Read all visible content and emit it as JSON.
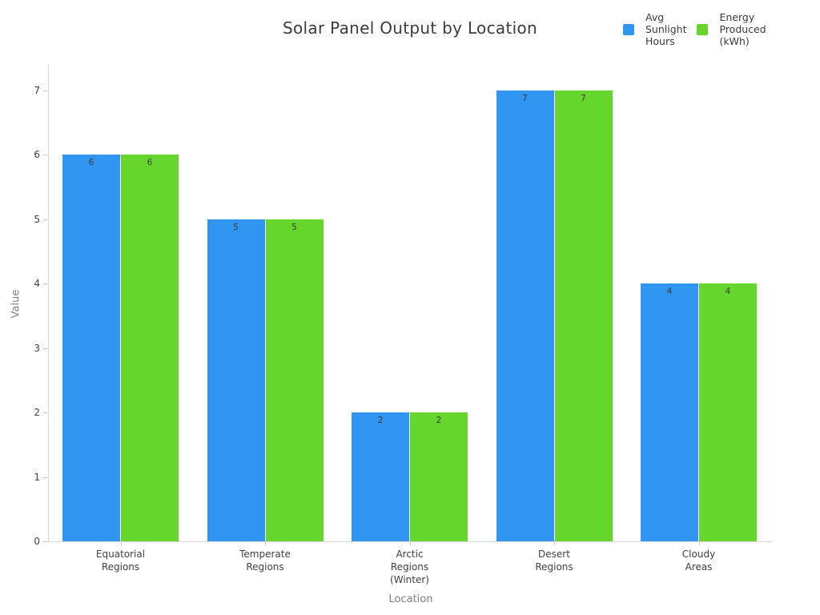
{
  "title": "Solar Panel Output by Location",
  "legend": {
    "items": [
      {
        "label": "Avg\nSunlight\nHours",
        "color": "#3195F2"
      },
      {
        "label": "Energy\nProduced\n(kWh)",
        "color": "#67D62C"
      }
    ]
  },
  "chart_data": {
    "type": "bar",
    "title": "Solar Panel Output by Location",
    "xlabel": "Location",
    "ylabel": "Value",
    "categories": [
      "Equatorial\nRegions",
      "Temperate\nRegions",
      "Arctic\nRegions\n(Winter)",
      "Desert\nRegions",
      "Cloudy\nAreas"
    ],
    "series": [
      {
        "name": "Avg Sunlight Hours",
        "color": "#3195F2",
        "values": [
          6,
          5,
          2,
          7,
          4
        ]
      },
      {
        "name": "Energy Produced (kWh)",
        "color": "#67D62C",
        "values": [
          6,
          5,
          2,
          7,
          4
        ]
      }
    ],
    "ylim": [
      0,
      7
    ],
    "yticks": [
      0,
      1,
      2,
      3,
      4,
      5,
      6,
      7
    ],
    "grid": false,
    "bar_labels": true,
    "legend_position": "top-right"
  }
}
